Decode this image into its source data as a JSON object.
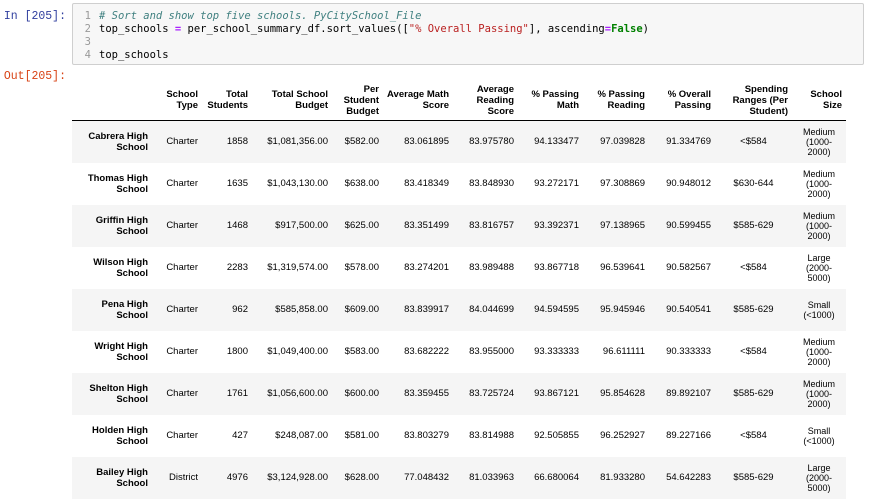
{
  "input_prompt": "In [205]:",
  "output_prompt": "Out[205]:",
  "code": {
    "line_numbers": [
      "1",
      "2",
      "3",
      "4"
    ],
    "comment": "# Sort and show top five schools. PyCitySchool_File",
    "line2_a": "top_schools ",
    "line2_eq": "=",
    "line2_b": " per_school_summary_df.sort_values([",
    "line2_str": "\"% Overall Passing\"",
    "line2_c": "], ascending",
    "line2_eq2": "=",
    "line2_kw": "False",
    "line2_d": ")",
    "line4": "top_schools"
  },
  "table": {
    "columns": [
      "School Type",
      "Total Students",
      "Total School Budget",
      "Per Student Budget",
      "Average Math Score",
      "Average Reading Score",
      "% Passing Math",
      "% Passing Reading",
      "% Overall Passing",
      "Spending Ranges (Per Student)",
      "School Size"
    ],
    "rows": [
      {
        "name": "Cabrera High School",
        "cells": [
          "Charter",
          "1858",
          "$1,081,356.00",
          "$582.00",
          "83.061895",
          "83.975780",
          "94.133477",
          "97.039828",
          "91.334769",
          "<$584",
          "Medium (1000-2000)"
        ]
      },
      {
        "name": "Thomas High School",
        "cells": [
          "Charter",
          "1635",
          "$1,043,130.00",
          "$638.00",
          "83.418349",
          "83.848930",
          "93.272171",
          "97.308869",
          "90.948012",
          "$630-644",
          "Medium (1000-2000)"
        ]
      },
      {
        "name": "Griffin High School",
        "cells": [
          "Charter",
          "1468",
          "$917,500.00",
          "$625.00",
          "83.351499",
          "83.816757",
          "93.392371",
          "97.138965",
          "90.599455",
          "$585-629",
          "Medium (1000-2000)"
        ]
      },
      {
        "name": "Wilson High School",
        "cells": [
          "Charter",
          "2283",
          "$1,319,574.00",
          "$578.00",
          "83.274201",
          "83.989488",
          "93.867718",
          "96.539641",
          "90.582567",
          "<$584",
          "Large (2000-5000)"
        ]
      },
      {
        "name": "Pena High School",
        "cells": [
          "Charter",
          "962",
          "$585,858.00",
          "$609.00",
          "83.839917",
          "84.044699",
          "94.594595",
          "95.945946",
          "90.540541",
          "$585-629",
          "Small (<1000)"
        ]
      },
      {
        "name": "Wright High School",
        "cells": [
          "Charter",
          "1800",
          "$1,049,400.00",
          "$583.00",
          "83.682222",
          "83.955000",
          "93.333333",
          "96.611111",
          "90.333333",
          "<$584",
          "Medium (1000-2000)"
        ]
      },
      {
        "name": "Shelton High School",
        "cells": [
          "Charter",
          "1761",
          "$1,056,600.00",
          "$600.00",
          "83.359455",
          "83.725724",
          "93.867121",
          "95.854628",
          "89.892107",
          "$585-629",
          "Medium (1000-2000)"
        ]
      },
      {
        "name": "Holden High School",
        "cells": [
          "Charter",
          "427",
          "$248,087.00",
          "$581.00",
          "83.803279",
          "83.814988",
          "92.505855",
          "96.252927",
          "89.227166",
          "<$584",
          "Small (<1000)"
        ]
      },
      {
        "name": "Bailey High School",
        "cells": [
          "District",
          "4976",
          "$3,124,928.00",
          "$628.00",
          "77.048432",
          "81.033963",
          "66.680064",
          "81.933280",
          "54.642283",
          "$585-629",
          "Large (2000-5000)"
        ]
      }
    ]
  }
}
